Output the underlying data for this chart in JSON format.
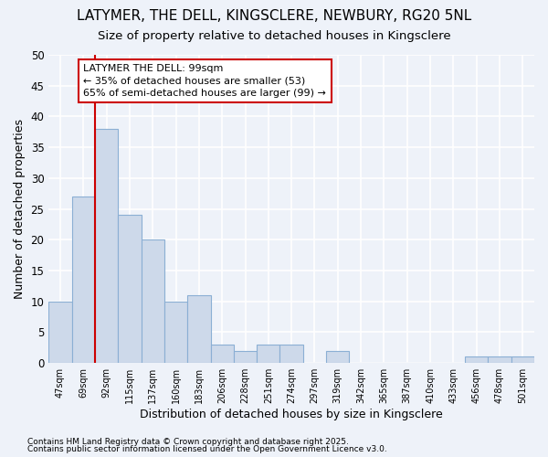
{
  "title1": "LATYMER, THE DELL, KINGSCLERE, NEWBURY, RG20 5NL",
  "title2": "Size of property relative to detached houses in Kingsclere",
  "xlabel": "Distribution of detached houses by size in Kingsclere",
  "ylabel": "Number of detached properties",
  "categories": [
    "47sqm",
    "69sqm",
    "92sqm",
    "115sqm",
    "137sqm",
    "160sqm",
    "183sqm",
    "206sqm",
    "228sqm",
    "251sqm",
    "274sqm",
    "297sqm",
    "319sqm",
    "342sqm",
    "365sqm",
    "387sqm",
    "410sqm",
    "433sqm",
    "456sqm",
    "478sqm",
    "501sqm"
  ],
  "values": [
    10,
    27,
    38,
    24,
    20,
    10,
    11,
    3,
    2,
    3,
    3,
    0,
    2,
    0,
    0,
    0,
    0,
    0,
    1,
    1,
    1
  ],
  "bar_color": "#cdd9ea",
  "bar_edge_color": "#8bafd4",
  "vline_x_index": 2,
  "vline_color": "#cc0000",
  "annotation_text": "LATYMER THE DELL: 99sqm\n← 35% of detached houses are smaller (53)\n65% of semi-detached houses are larger (99) →",
  "annotation_box_color": "#ffffff",
  "annotation_box_edge": "#cc0000",
  "ylim": [
    0,
    50
  ],
  "yticks": [
    0,
    5,
    10,
    15,
    20,
    25,
    30,
    35,
    40,
    45,
    50
  ],
  "footer1": "Contains HM Land Registry data © Crown copyright and database right 2025.",
  "footer2": "Contains public sector information licensed under the Open Government Licence v3.0.",
  "bg_color": "#eef2f9",
  "grid_color": "#ffffff",
  "title_fontsize": 11,
  "subtitle_fontsize": 9.5
}
